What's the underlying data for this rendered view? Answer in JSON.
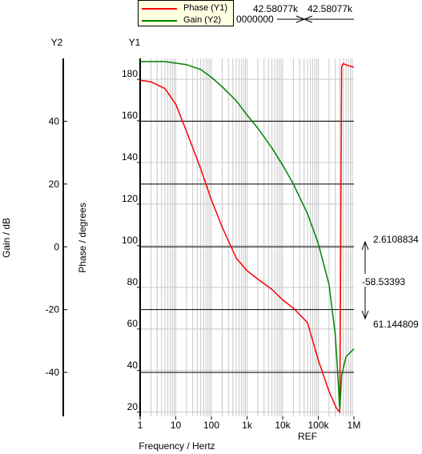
{
  "legend": {
    "items": [
      {
        "label": "Phase (Y1)",
        "color": "#ff0000"
      },
      {
        "label": "Gain (Y2)",
        "color": "#008000"
      }
    ]
  },
  "cursor_readout": {
    "left_value": "42.58077k",
    "right_value": "42.58077k",
    "offset_value": "0000000",
    "delta_top": "2.6108834",
    "delta_mid": "-58.53393",
    "delta_bottom": "61.144809",
    "ref_label": "REF"
  },
  "chart_data": {
    "type": "line",
    "title": "",
    "xlabel": "Frequency / Hertz",
    "x_scale": "log",
    "x_ticks": [
      "1",
      "10",
      "100",
      "1k",
      "10k",
      "100k",
      "1M"
    ],
    "x_tick_values": [
      1,
      10,
      100,
      1000,
      10000,
      100000,
      1000000
    ],
    "xlim": [
      1,
      1000000
    ],
    "y1": {
      "axis_name": "Y1",
      "label": "Phase / degrees",
      "ticks": [
        "20",
        "40",
        "60",
        "80",
        "100",
        "120",
        "140",
        "160",
        "180"
      ],
      "tick_values": [
        20,
        40,
        60,
        80,
        100,
        120,
        140,
        160,
        180
      ],
      "lim": [
        18,
        190
      ]
    },
    "y2": {
      "axis_name": "Y2",
      "label": "Gain / dB",
      "ticks": [
        "40",
        "20",
        "0",
        "-20",
        "-40"
      ],
      "tick_values": [
        40,
        20,
        0,
        -20,
        -40
      ],
      "lim": [
        -54,
        60
      ]
    },
    "grid": true,
    "series": [
      {
        "name": "Phase (Y1)",
        "axis": "y1",
        "color": "#ff0000",
        "points": [
          [
            1,
            179.5
          ],
          [
            2,
            178.8
          ],
          [
            5,
            175.5
          ],
          [
            10,
            168
          ],
          [
            20,
            155
          ],
          [
            50,
            137
          ],
          [
            100,
            122
          ],
          [
            200,
            109
          ],
          [
            500,
            94
          ],
          [
            1000,
            88
          ],
          [
            2000,
            84
          ],
          [
            5000,
            79
          ],
          [
            10000,
            74
          ],
          [
            20000,
            70
          ],
          [
            50000,
            63
          ],
          [
            100000,
            45
          ],
          [
            200000,
            30
          ],
          [
            320000,
            22
          ],
          [
            400000,
            20
          ],
          [
            420000,
            75
          ],
          [
            440000,
            150
          ],
          [
            450000,
            186
          ],
          [
            500000,
            187.5
          ],
          [
            700000,
            186.5
          ],
          [
            1000000,
            185.8
          ]
        ]
      },
      {
        "name": "Gain (Y2)",
        "axis": "y2",
        "color": "#008000",
        "points": [
          [
            1,
            59
          ],
          [
            5,
            59
          ],
          [
            20,
            58
          ],
          [
            50,
            56.5
          ],
          [
            100,
            54
          ],
          [
            200,
            51
          ],
          [
            500,
            46.5
          ],
          [
            1000,
            42
          ],
          [
            2000,
            37.8
          ],
          [
            5000,
            31.5
          ],
          [
            10000,
            26
          ],
          [
            20000,
            20
          ],
          [
            50000,
            10.5
          ],
          [
            100000,
            1
          ],
          [
            200000,
            -12
          ],
          [
            300000,
            -28
          ],
          [
            350000,
            -40
          ],
          [
            400000,
            -52
          ],
          [
            450000,
            -41
          ],
          [
            600000,
            -35
          ],
          [
            1000000,
            -32.5
          ]
        ]
      }
    ]
  }
}
